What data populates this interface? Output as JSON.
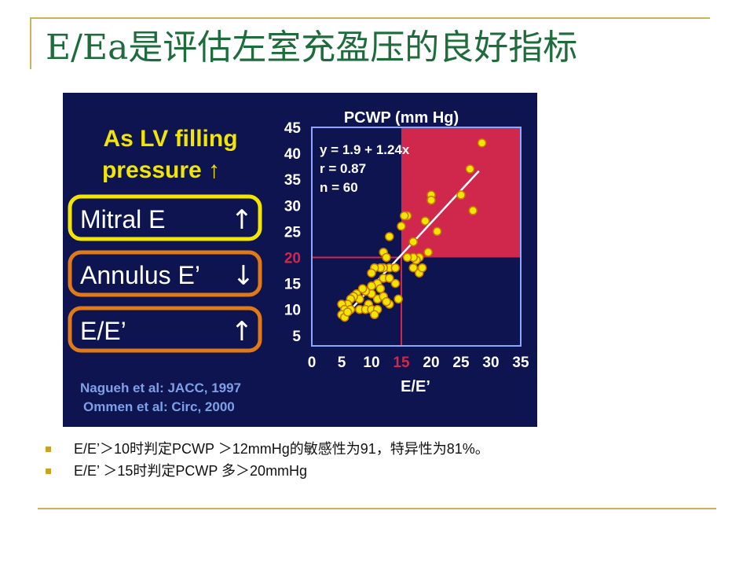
{
  "slide": {
    "title": "E/Ea是评估左室充盈压的良好指标",
    "bullets": [
      "E/E’＞10时判定PCWP ＞12mmHg的敏感性为91，特异性为81%。",
      " E/E’ ＞15时判定PCWP 多＞20mmHg"
    ]
  },
  "colors": {
    "title": "#1e6b3c",
    "rule": "#c9b35a",
    "bullet_mark": "#c9a227",
    "figure_bg": "#0d1450",
    "highlight_region": "#d0284c",
    "points": "#f2e600",
    "points_outline": "#c77800",
    "box_yellow": "#f2e600",
    "box_orange": "#e07a18",
    "credit_text": "#7fa0e6"
  },
  "figure": {
    "heading_line1": "As LV filling",
    "heading_line2": "pressure ↑",
    "boxes": [
      {
        "label": "Mitral E",
        "arrow": "↑",
        "border": "yellow"
      },
      {
        "label": "Annulus E’",
        "arrow": "↓",
        "border": "orange"
      },
      {
        "label": "E/E’",
        "arrow": "↑",
        "border": "orange"
      }
    ],
    "credits": [
      "Nagueh et al:  JACC, 1997",
      "Ommen et al: Circ, 2000"
    ]
  },
  "chart_data": {
    "type": "scatter",
    "title": "PCWP (mm Hg)",
    "xlabel": "E/E’",
    "ylabel": "PCWP (mm Hg)",
    "xlim": [
      0,
      35
    ],
    "ylim": [
      3,
      45
    ],
    "x_ticks": [
      "0",
      "5",
      "10",
      "15",
      "20",
      "25",
      "30",
      "35"
    ],
    "y_ticks": [
      "5",
      "10",
      "15",
      "20",
      "25",
      "30",
      "35",
      "40",
      "45"
    ],
    "highlight_x_tick": "15",
    "highlight_y_tick": "20",
    "annotations": [
      "y = 1.9 + 1.24x",
      "r = 0.87",
      "n = 60"
    ],
    "regression": {
      "intercept": 1.9,
      "slope": 1.24,
      "x_range": [
        5,
        28
      ]
    },
    "threshold": {
      "x": 15,
      "y": 20
    },
    "points": [
      [
        28.5,
        42
      ],
      [
        26.5,
        37
      ],
      [
        27,
        29
      ],
      [
        25,
        32
      ],
      [
        20,
        32
      ],
      [
        20,
        31
      ],
      [
        21,
        25
      ],
      [
        19,
        27
      ],
      [
        19.5,
        21
      ],
      [
        18,
        20
      ],
      [
        17.5,
        19.5
      ],
      [
        17,
        20
      ],
      [
        18,
        17
      ],
      [
        16,
        28
      ],
      [
        15.5,
        28
      ],
      [
        15,
        26
      ],
      [
        17,
        23
      ],
      [
        16,
        20
      ],
      [
        17,
        18
      ],
      [
        18.5,
        18
      ],
      [
        13,
        24
      ],
      [
        12,
        21
      ],
      [
        12.5,
        20
      ],
      [
        13,
        18
      ],
      [
        12,
        18
      ],
      [
        11.5,
        18
      ],
      [
        10.5,
        18
      ],
      [
        14,
        18
      ],
      [
        10,
        17
      ],
      [
        12,
        16
      ],
      [
        13,
        16
      ],
      [
        14,
        15
      ],
      [
        11,
        15
      ],
      [
        11.5,
        14
      ],
      [
        10,
        14.5
      ],
      [
        10,
        13
      ],
      [
        9,
        13.5
      ],
      [
        8.5,
        14
      ],
      [
        7.5,
        13
      ],
      [
        8,
        12
      ],
      [
        7,
        12.5
      ],
      [
        6.5,
        12
      ],
      [
        11,
        12
      ],
      [
        12,
        12.5
      ],
      [
        13,
        11
      ],
      [
        12.5,
        11.5
      ],
      [
        14.5,
        12
      ],
      [
        9.5,
        11
      ],
      [
        6,
        11
      ],
      [
        5,
        11
      ],
      [
        5.5,
        10
      ],
      [
        6.5,
        10
      ],
      [
        8,
        10
      ],
      [
        9,
        10
      ],
      [
        10,
        10
      ],
      [
        11,
        10
      ],
      [
        10.5,
        9
      ],
      [
        5,
        9
      ],
      [
        5.5,
        8.5
      ],
      [
        6,
        9.5
      ]
    ]
  }
}
